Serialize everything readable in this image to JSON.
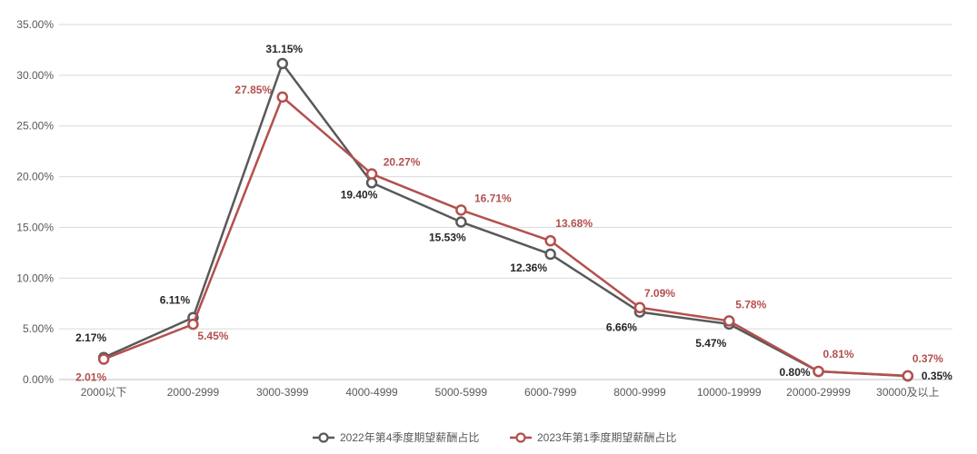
{
  "chart_data": {
    "type": "line",
    "categories": [
      "2000以下",
      "2000-2999",
      "3000-3999",
      "4000-4999",
      "5000-5999",
      "6000-7999",
      "8000-9999",
      "10000-19999",
      "20000-29999",
      "30000及以上"
    ],
    "ylim": [
      0,
      35
    ],
    "yticks": [
      "0.00%",
      "5.00%",
      "10.00%",
      "15.00%",
      "20.00%",
      "25.00%",
      "30.00%",
      "35.00%"
    ],
    "grid": true,
    "legend_position": "bottom",
    "series": [
      {
        "name": "2022年第4季度期望薪酬占比",
        "color": "#595959",
        "values": [
          2.17,
          6.11,
          31.15,
          19.4,
          15.53,
          12.36,
          6.66,
          5.47,
          0.8,
          0.35
        ],
        "labels": [
          "2.17%",
          "6.11%",
          "31.15%",
          "19.40%",
          "15.53%",
          "12.36%",
          "6.66%",
          "5.47%",
          "0.80%",
          "0.35%"
        ]
      },
      {
        "name": "2023年第1季度期望薪酬占比",
        "color": "#B3504E",
        "values": [
          2.01,
          5.45,
          27.85,
          20.27,
          16.71,
          13.68,
          7.09,
          5.78,
          0.81,
          0.37
        ],
        "labels": [
          "2.01%",
          "5.45%",
          "27.85%",
          "20.27%",
          "16.71%",
          "13.68%",
          "7.09%",
          "5.78%",
          "0.81%",
          "0.37%"
        ]
      }
    ]
  }
}
